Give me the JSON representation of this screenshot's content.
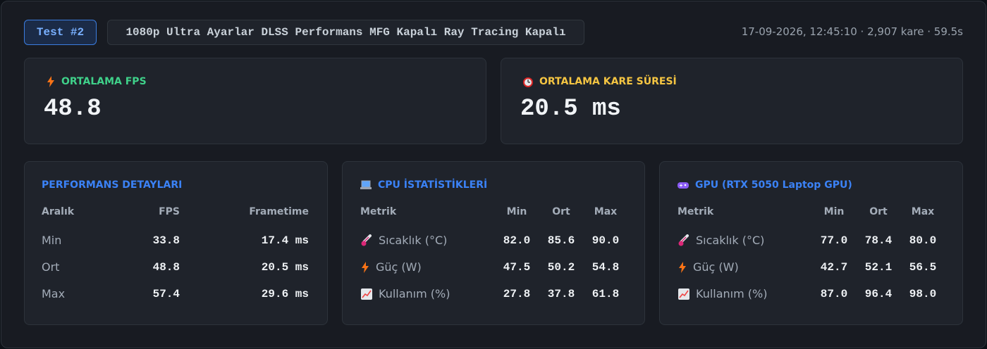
{
  "header": {
    "badge": "Test #2",
    "settings": "1080p Ultra Ayarlar DLSS Performans MFG Kapalı Ray Tracing Kapalı",
    "meta": "17-09-2026, 12:45:10 · 2,907 kare · 59.5s"
  },
  "summary": [
    {
      "label": "ORTALAMA FPS",
      "value": "48.8"
    },
    {
      "label": "ORTALAMA KARE SÜRESİ",
      "value": "20.5 ms"
    }
  ],
  "panels": [
    {
      "title": "PERFORMANS DETAYLARI",
      "columns": [
        "Aralık",
        "FPS",
        "Frametime"
      ],
      "rows": [
        [
          "Min",
          "33.8",
          "17.4 ms"
        ],
        [
          "Ort",
          "48.8",
          "20.5 ms"
        ],
        [
          "Max",
          "57.4",
          "29.6 ms"
        ]
      ]
    },
    {
      "title": "CPU İSTATİSTİKLERİ",
      "columns": [
        "Metrik",
        "Min",
        "Ort",
        "Max"
      ],
      "rows": [
        [
          "Sıcaklık (°C)",
          "82.0",
          "85.6",
          "90.0"
        ],
        [
          "Güç (W)",
          "47.5",
          "50.2",
          "54.8"
        ],
        [
          "Kullanım (%)",
          "27.8",
          "37.8",
          "61.8"
        ]
      ]
    },
    {
      "title": "GPU (RTX 5050 Laptop GPU)",
      "columns": [
        "Metrik",
        "Min",
        "Ort",
        "Max"
      ],
      "rows": [
        [
          "Sıcaklık (°C)",
          "77.0",
          "78.4",
          "80.0"
        ],
        [
          "Güç (W)",
          "42.7",
          "52.1",
          "56.5"
        ],
        [
          "Kullanım (%)",
          "87.0",
          "96.4",
          "98.0"
        ]
      ]
    }
  ]
}
